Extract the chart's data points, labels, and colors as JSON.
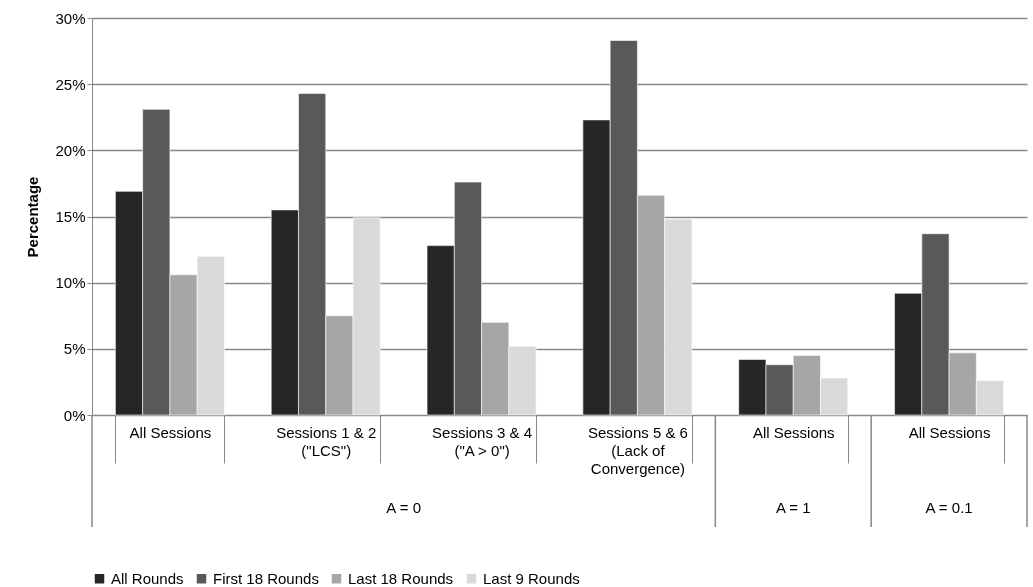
{
  "chart_data": {
    "type": "bar",
    "ylabel": "Percentage",
    "categories": [
      "All Sessions",
      "Sessions 1 & 2\n(\"LCS\")",
      "Sessions 3 & 4\n(\"A > 0\")",
      "Sessions 5 & 6\n(Lack of\nConvergence)",
      "All Sessions",
      "All Sessions"
    ],
    "annotations": [
      "A = 0",
      "A = 1",
      "A = 0.1"
    ],
    "series": [
      {
        "name": "All Rounds",
        "color": "#262626",
        "values": [
          16.9,
          15.5,
          12.8,
          22.3,
          4.2,
          9.2
        ]
      },
      {
        "name": "First 18 Rounds",
        "color": "#595959",
        "values": [
          23.1,
          24.3,
          17.6,
          28.3,
          3.8,
          13.7
        ]
      },
      {
        "name": "Last 18 Rounds",
        "color": "#a6a6a6",
        "values": [
          10.6,
          7.5,
          7.0,
          16.6,
          4.5,
          4.7
        ]
      },
      {
        "name": "Last 9 Rounds",
        "color": "#d9d9d9",
        "values": [
          12.0,
          14.9,
          5.2,
          14.8,
          2.8,
          2.6
        ]
      }
    ],
    "ylim": [
      0,
      30
    ],
    "yticks": [
      {
        "value": 0,
        "label": "0%"
      },
      {
        "value": 5,
        "label": "5%"
      },
      {
        "value": 10,
        "label": "10%"
      },
      {
        "value": 15,
        "label": "15%"
      },
      {
        "value": 20,
        "label": "20%"
      },
      {
        "value": 25,
        "label": "25%"
      },
      {
        "value": 30,
        "label": "30%"
      }
    ],
    "grid": "y",
    "legend": "bottom"
  }
}
